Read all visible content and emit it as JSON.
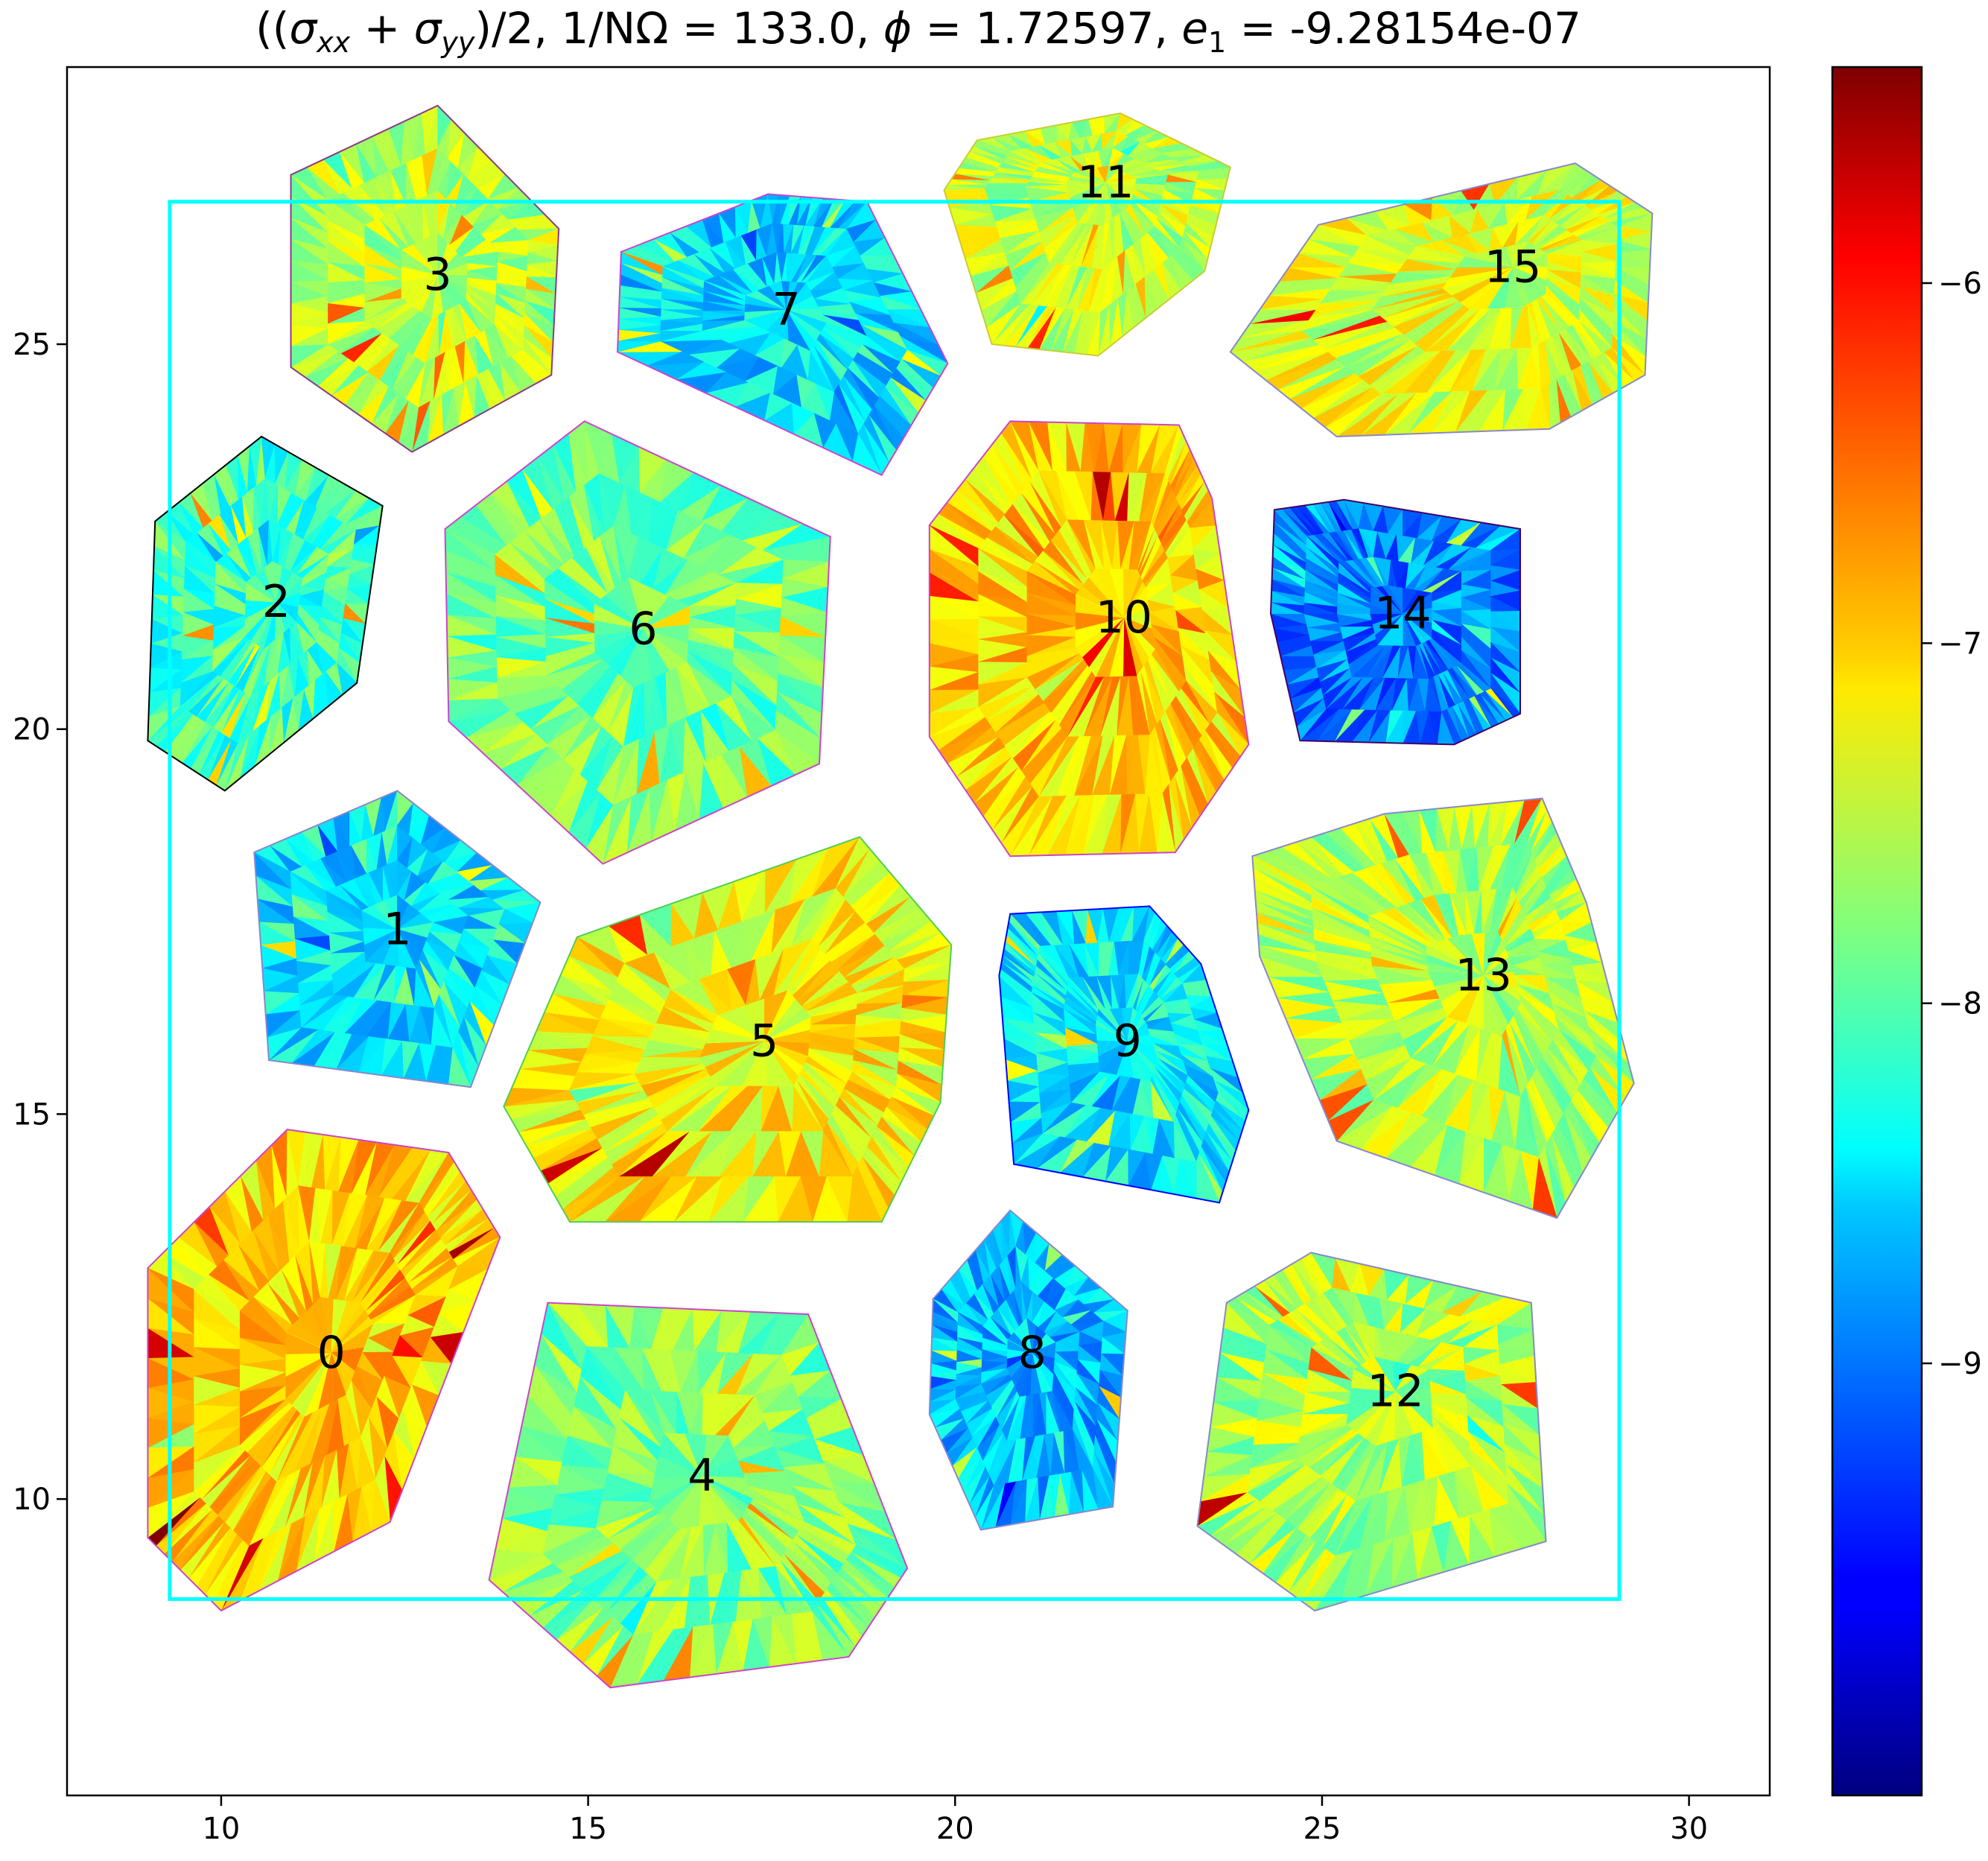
{
  "chart_data": {
    "type": "heatmap",
    "title": "((σxx + σyy)/2,  1/NΩ = 133.0, ϕ = 1.72597, e1 = -9.28154e-07",
    "title_parts": {
      "expr_open": "((",
      "sigma": "σ",
      "sub_xx": "xx",
      "plus": " + ",
      "sub_yy": "yy",
      "expr_close": ")/2,  1/NΩ = 133.0, ",
      "phi": "ϕ",
      "phi_value": " = 1.72597, ",
      "e": "e",
      "sub_1": "1",
      "e_value": " = -9.28154e-07"
    },
    "xlabel": "",
    "ylabel": "",
    "xlim": [
      7.9,
      31.1
    ],
    "ylim": [
      6.15,
      28.6
    ],
    "xticks": [
      10,
      15,
      20,
      25,
      30
    ],
    "yticks": [
      10,
      15,
      20,
      25
    ],
    "grid": false,
    "colormap": "jet",
    "colorbar": {
      "range": [
        -10.2,
        -5.4
      ],
      "ticks": [
        -6,
        -7,
        -8,
        -9
      ],
      "tick_labels": [
        "−6",
        "−7",
        "−8",
        "−9"
      ],
      "placement": "right"
    },
    "box": {
      "x": [
        9.3,
        29.05
      ],
      "y": [
        8.7,
        26.85
      ],
      "color": "#00ffff"
    },
    "cells": [
      {
        "label": "0",
        "center": [
          11.5,
          11.9
        ],
        "mean_value": -7.0,
        "edge_color": "#cc44cc",
        "polygon": [
          [
            9.0,
            13.0
          ],
          [
            10.9,
            14.8
          ],
          [
            13.1,
            14.5
          ],
          [
            13.8,
            13.4
          ],
          [
            12.3,
            9.7
          ],
          [
            10.0,
            8.55
          ],
          [
            9.0,
            9.5
          ]
        ]
      },
      {
        "label": "1",
        "center": [
          12.4,
          17.4
        ],
        "mean_value": -8.5,
        "edge_color": "#8888cc",
        "polygon": [
          [
            10.45,
            18.4
          ],
          [
            12.4,
            19.2
          ],
          [
            14.35,
            17.75
          ],
          [
            13.4,
            15.35
          ],
          [
            10.65,
            15.7
          ]
        ]
      },
      {
        "label": "2",
        "center": [
          10.75,
          21.65
        ],
        "mean_value": -8.1,
        "edge_color": "#000000",
        "polygon": [
          [
            9.1,
            22.7
          ],
          [
            10.55,
            23.8
          ],
          [
            12.2,
            22.9
          ],
          [
            11.85,
            20.6
          ],
          [
            10.05,
            19.2
          ],
          [
            9.0,
            19.85
          ]
        ]
      },
      {
        "label": "3",
        "center": [
          12.95,
          25.9
        ],
        "mean_value": -7.55,
        "edge_color": "#8a3a8a",
        "polygon": [
          [
            10.95,
            27.2
          ],
          [
            12.95,
            28.1
          ],
          [
            14.6,
            26.5
          ],
          [
            14.5,
            24.6
          ],
          [
            12.6,
            23.6
          ],
          [
            10.95,
            24.7
          ]
        ]
      },
      {
        "label": "4",
        "center": [
          16.55,
          10.3
        ],
        "mean_value": -7.8,
        "edge_color": "#cc44cc",
        "polygon": [
          [
            14.45,
            12.55
          ],
          [
            18.0,
            12.4
          ],
          [
            19.35,
            9.1
          ],
          [
            18.55,
            7.95
          ],
          [
            15.3,
            7.55
          ],
          [
            13.65,
            8.95
          ]
        ]
      },
      {
        "label": "5",
        "center": [
          17.4,
          15.95
        ],
        "mean_value": -7.2,
        "edge_color": "#55cc55",
        "polygon": [
          [
            14.85,
            17.3
          ],
          [
            18.7,
            18.6
          ],
          [
            19.95,
            17.2
          ],
          [
            19.8,
            15.15
          ],
          [
            19.0,
            13.6
          ],
          [
            14.75,
            13.6
          ],
          [
            13.85,
            15.1
          ]
        ]
      },
      {
        "label": "6",
        "center": [
          15.75,
          21.3
        ],
        "mean_value": -7.85,
        "edge_color": "#cc44cc",
        "polygon": [
          [
            13.05,
            22.6
          ],
          [
            14.95,
            24.0
          ],
          [
            18.3,
            22.5
          ],
          [
            18.15,
            19.55
          ],
          [
            15.2,
            18.25
          ],
          [
            13.1,
            20.1
          ]
        ]
      },
      {
        "label": "7",
        "center": [
          17.7,
          25.45
        ],
        "mean_value": -8.55,
        "edge_color": "#cc44cc",
        "polygon": [
          [
            15.45,
            26.2
          ],
          [
            17.45,
            26.95
          ],
          [
            18.8,
            26.85
          ],
          [
            19.9,
            24.75
          ],
          [
            19.0,
            23.3
          ],
          [
            15.4,
            24.9
          ]
        ]
      },
      {
        "label": "8",
        "center": [
          21.05,
          11.9
        ],
        "mean_value": -8.7,
        "edge_color": "#8888cc",
        "polygon": [
          [
            19.7,
            12.6
          ],
          [
            20.75,
            13.75
          ],
          [
            22.35,
            12.45
          ],
          [
            22.15,
            9.9
          ],
          [
            20.35,
            9.6
          ],
          [
            19.65,
            11.1
          ]
        ]
      },
      {
        "label": "9",
        "center": [
          22.35,
          15.95
        ],
        "mean_value": -8.45,
        "edge_color": "#0000ff",
        "polygon": [
          [
            20.75,
            17.6
          ],
          [
            22.65,
            17.7
          ],
          [
            23.35,
            16.95
          ],
          [
            24.0,
            15.05
          ],
          [
            23.6,
            13.85
          ],
          [
            20.8,
            14.35
          ],
          [
            20.6,
            16.8
          ]
        ]
      },
      {
        "label": "10",
        "center": [
          22.3,
          21.45
        ],
        "mean_value": -7.0,
        "edge_color": "#cc44cc",
        "polygon": [
          [
            19.65,
            22.65
          ],
          [
            20.75,
            24.0
          ],
          [
            23.05,
            23.95
          ],
          [
            23.5,
            23.0
          ],
          [
            24.0,
            19.8
          ],
          [
            23.0,
            18.4
          ],
          [
            20.75,
            18.35
          ],
          [
            19.65,
            19.9
          ]
        ]
      },
      {
        "label": "11",
        "center": [
          22.05,
          27.1
        ],
        "mean_value": -7.5,
        "edge_color": "#cccc33",
        "polygon": [
          [
            20.3,
            27.65
          ],
          [
            22.25,
            28.0
          ],
          [
            23.75,
            27.3
          ],
          [
            23.4,
            25.95
          ],
          [
            21.95,
            24.85
          ],
          [
            20.5,
            25.0
          ],
          [
            19.85,
            27.0
          ]
        ]
      },
      {
        "label": "12",
        "center": [
          26.0,
          11.4
        ],
        "mean_value": -7.6,
        "edge_color": "#8888cc",
        "polygon": [
          [
            23.7,
            12.55
          ],
          [
            24.85,
            13.2
          ],
          [
            27.85,
            12.55
          ],
          [
            28.05,
            9.45
          ],
          [
            24.9,
            8.55
          ],
          [
            23.3,
            9.65
          ]
        ]
      },
      {
        "label": "13",
        "center": [
          27.2,
          16.8
        ],
        "mean_value": -7.55,
        "edge_color": "#8888cc",
        "polygon": [
          [
            24.05,
            18.35
          ],
          [
            25.85,
            18.9
          ],
          [
            28.0,
            19.1
          ],
          [
            28.6,
            17.75
          ],
          [
            29.25,
            15.4
          ],
          [
            28.2,
            13.65
          ],
          [
            25.2,
            14.65
          ],
          [
            24.15,
            17.05
          ]
        ]
      },
      {
        "label": "14",
        "center": [
          26.1,
          21.5
        ],
        "mean_value": -9.0,
        "edge_color": "#440066",
        "polygon": [
          [
            24.35,
            22.85
          ],
          [
            25.3,
            22.98
          ],
          [
            27.7,
            22.6
          ],
          [
            27.7,
            20.2
          ],
          [
            26.8,
            19.8
          ],
          [
            24.7,
            19.85
          ],
          [
            24.3,
            21.5
          ]
        ]
      },
      {
        "label": "15",
        "center": [
          27.6,
          26.0
        ],
        "mean_value": -7.35,
        "edge_color": "#8888cc",
        "polygon": [
          [
            24.95,
            26.55
          ],
          [
            28.45,
            27.35
          ],
          [
            29.5,
            26.7
          ],
          [
            29.4,
            24.6
          ],
          [
            28.1,
            23.9
          ],
          [
            25.2,
            23.8
          ],
          [
            23.75,
            24.9
          ]
        ]
      }
    ]
  }
}
